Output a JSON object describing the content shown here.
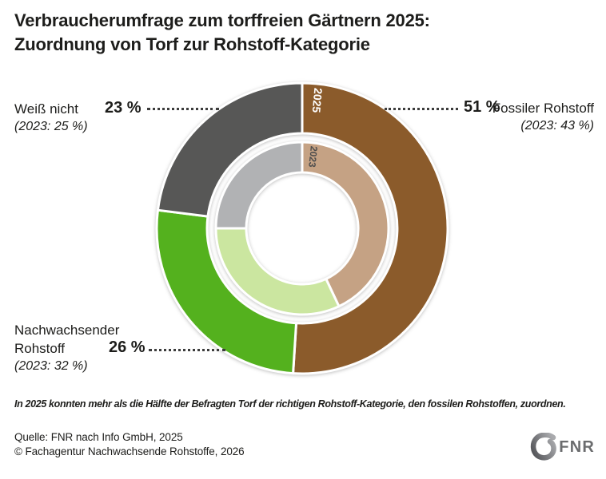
{
  "title": "Verbraucherumfrage zum torffreien Gärtnern 2025:\nZuordnung von Torf zur Rohstoff-Kategorie",
  "chart_data": {
    "type": "donut",
    "title": "Verbraucherumfrage zum torffreien Gärtnern 2025: Zuordnung von Torf zur Rohstoff-Kategorie",
    "legend_position": "callout-labels",
    "rings": [
      {
        "year": "2025",
        "year_label_color": "#ffffff",
        "segments": [
          {
            "label": "Fossiler Rohstoff",
            "value": 51,
            "color": "#8b5b2b"
          },
          {
            "label": "Nachwachsender Rohstoff",
            "value": 26,
            "color": "#54b11e"
          },
          {
            "label": "Weiß nicht",
            "value": 23,
            "color": "#575756"
          }
        ]
      },
      {
        "year": "2023",
        "year_label_color": "#4d4d4d",
        "segments": [
          {
            "label": "Fossiler Rohstoff",
            "value": 43,
            "color": "#c5a284"
          },
          {
            "label": "Nachwachsender Rohstoff",
            "value": 32,
            "color": "#cbe6a0"
          },
          {
            "label": "Weiß nicht",
            "value": 25,
            "color": "#b1b2b4"
          }
        ]
      }
    ]
  },
  "callouts": {
    "dontknow": {
      "label": "Weiß nicht",
      "prev": "(2023: 25 %)",
      "pct": "23 %"
    },
    "fossil": {
      "label": "Fossiler Rohstoff",
      "prev": "(2023: 43 %)",
      "pct": "51 %"
    },
    "renewable": {
      "label": "Nachwachsender Rohstoff",
      "prev": "(2023: 32 %)",
      "pct": "26 %"
    }
  },
  "footnote": "In 2025 konnten mehr als die Hälfte der Befragten Torf der richtigen Rohstoff-Kategorie, den fossilen Rohstoffen, zuordnen.",
  "source": "Quelle: FNR nach Info GmbH, 2025\n© Fachagentur Nachwachsende Rohstoffe, 2026",
  "logo": {
    "text": "FNR"
  },
  "colors": {
    "text": "#1d1d1b",
    "leader_dots": "#3c3c3c",
    "logo_gray": "#6b6c6e"
  }
}
